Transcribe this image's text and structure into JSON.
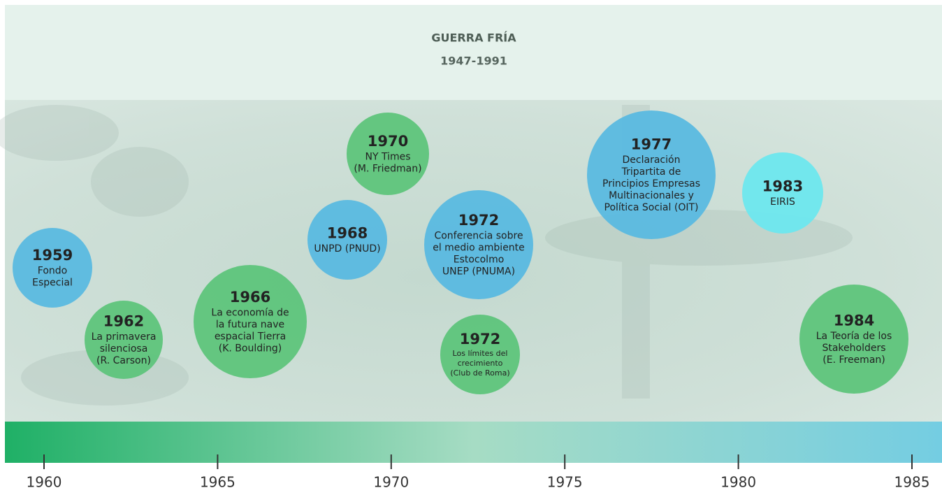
{
  "header": {
    "title": "GUERRA FRÍA",
    "subtitle": "1947-1991"
  },
  "events": [
    {
      "year": "1959",
      "lines": [
        "Fondo",
        "Especial"
      ]
    },
    {
      "year": "1962",
      "lines": [
        "La primavera",
        "silenciosa",
        "(R. Carson)"
      ]
    },
    {
      "year": "1966",
      "lines": [
        "La economía de",
        "la futura nave",
        "espacial Tierra",
        "(K. Boulding)"
      ]
    },
    {
      "year": "1968",
      "lines": [
        "UNPD (PNUD)"
      ]
    },
    {
      "year": "1970",
      "lines": [
        "NY Times",
        "(M. Friedman)"
      ]
    },
    {
      "year": "1972",
      "lines": [
        "Conferencia sobre",
        "el medio ambiente",
        "Estocolmo",
        "UNEP (PNUMA)"
      ]
    },
    {
      "year": "1972",
      "lines": [
        "Los límites del",
        "crecimiento",
        "(Club de Roma)"
      ]
    },
    {
      "year": "1977",
      "lines": [
        "Declaración",
        "Tripartita de",
        "Principios Empresas",
        "Multinacionales y",
        "Política Social (OIT)"
      ]
    },
    {
      "year": "1983",
      "lines": [
        "EIRIS"
      ]
    },
    {
      "year": "1984",
      "lines": [
        "La Teoría de los",
        "Stakeholders",
        "(E. Freeman)"
      ]
    }
  ],
  "timeline": {
    "ticks": [
      "1960",
      "1965",
      "1970",
      "1975",
      "1980",
      "1985"
    ]
  }
}
